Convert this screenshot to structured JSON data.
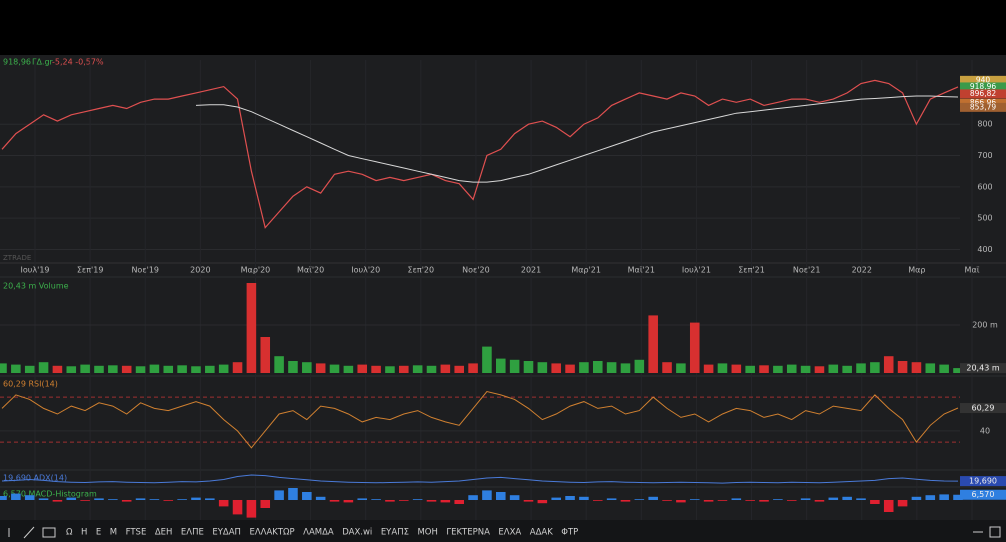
{
  "header": {
    "last": "918,96",
    "symbol": "ΓΔ.gr",
    "change": "-5,24 -0,57%"
  },
  "watermark": "ZTRADE",
  "chart_data": [
    {
      "type": "line",
      "pane": "price",
      "ylim": [
        360,
        1005
      ],
      "yticks": [
        400,
        500,
        600,
        700,
        800
      ],
      "x_axis_labels": [
        "Ιουλ'19",
        "Σεπ'19",
        "Νοε'19",
        "2020",
        "Μαρ'20",
        "Μαϊ'20",
        "Ιουλ'20",
        "Σεπ'20",
        "Νοε'20",
        "2021",
        "Μαρ'21",
        "Μαϊ'21",
        "Ιουλ'21",
        "Σεπ'21",
        "Νοε'21",
        "2022",
        "Μαρ",
        "Μαϊ"
      ],
      "price_tags": [
        {
          "value": 940,
          "label": "940",
          "color": "#c8a040"
        },
        {
          "value": 918.96,
          "label": "918,96",
          "color": "#3a9a4a"
        },
        {
          "value": 896.82,
          "label": "896,82",
          "color": "#c04030"
        },
        {
          "value": 866.96,
          "label": "866,96",
          "color": "#c07030"
        },
        {
          "value": 853.79,
          "label": "853,79",
          "color": "#a06030"
        }
      ],
      "series": [
        {
          "color": "#e05050",
          "values": [
            720,
            770,
            800,
            830,
            810,
            830,
            840,
            850,
            860,
            850,
            870,
            880,
            880,
            890,
            900,
            910,
            920,
            880,
            650,
            470,
            520,
            570,
            600,
            580,
            640,
            650,
            640,
            620,
            630,
            620,
            630,
            640,
            620,
            610,
            560,
            700,
            720,
            770,
            800,
            810,
            790,
            760,
            800,
            820,
            860,
            880,
            900,
            890,
            880,
            900,
            890,
            860,
            880,
            870,
            880,
            860,
            870,
            880,
            880,
            870,
            880,
            900,
            930,
            940,
            930,
            900,
            800,
            880,
            900,
            918.96
          ]
        },
        {
          "color": "#d8d8d8",
          "values": [
            null,
            null,
            null,
            null,
            null,
            null,
            null,
            null,
            null,
            null,
            null,
            null,
            null,
            null,
            860,
            862,
            862,
            855,
            840,
            820,
            800,
            780,
            760,
            740,
            720,
            700,
            690,
            680,
            670,
            660,
            650,
            640,
            630,
            620,
            615,
            615,
            620,
            630,
            640,
            655,
            670,
            685,
            700,
            715,
            730,
            745,
            760,
            775,
            785,
            795,
            805,
            815,
            825,
            835,
            840,
            845,
            850,
            855,
            860,
            865,
            870,
            875,
            880,
            882,
            885,
            888,
            890,
            890,
            888,
            887
          ]
        }
      ]
    },
    {
      "type": "bar",
      "pane": "volume",
      "label": "20,43 m Volume",
      "tag": "20,43 m",
      "ylim": [
        0,
        387.5
      ],
      "yticks": [
        {
          "value": 200,
          "label": "200 m"
        }
      ],
      "values": [
        40,
        35,
        30,
        45,
        30,
        28,
        35,
        30,
        32,
        30,
        28,
        35,
        30,
        32,
        28,
        30,
        35,
        45,
        375,
        150,
        70,
        50,
        45,
        40,
        35,
        30,
        35,
        30,
        28,
        30,
        32,
        30,
        35,
        30,
        40,
        110,
        60,
        55,
        50,
        45,
        40,
        35,
        45,
        50,
        45,
        40,
        55,
        240,
        45,
        40,
        210,
        35,
        40,
        35,
        30,
        32,
        30,
        35,
        30,
        28,
        35,
        30,
        40,
        45,
        70,
        50,
        45,
        40,
        35,
        20.43
      ]
    },
    {
      "type": "line",
      "pane": "rsi",
      "label": "60,29 RSI(14)",
      "tag": "60,29",
      "ylim": [
        7,
        87
      ],
      "yticks": [
        40
      ],
      "levels": [
        70,
        30
      ],
      "color": "#d08030",
      "values": [
        60,
        72,
        68,
        60,
        55,
        62,
        58,
        65,
        62,
        55,
        65,
        60,
        58,
        62,
        66,
        62,
        50,
        40,
        25,
        40,
        55,
        58,
        50,
        62,
        60,
        55,
        48,
        52,
        50,
        55,
        58,
        52,
        48,
        45,
        60,
        75,
        72,
        68,
        60,
        50,
        55,
        62,
        66,
        60,
        62,
        55,
        58,
        70,
        60,
        52,
        55,
        48,
        55,
        60,
        58,
        52,
        55,
        50,
        58,
        55,
        62,
        60,
        58,
        72,
        60,
        50,
        30,
        45,
        55,
        60.29
      ]
    },
    {
      "type": "line",
      "pane": "adx",
      "label": "19,690 ADX(14)",
      "tag": "19,690",
      "ylim": [
        0,
        50
      ],
      "color": "#4a7ad8",
      "values": [
        20,
        22,
        25,
        22,
        18,
        16,
        15,
        17,
        18,
        16,
        15,
        14,
        16,
        18,
        17,
        20,
        25,
        35,
        40,
        38,
        32,
        28,
        24,
        20,
        18,
        16,
        15,
        14,
        15,
        16,
        17,
        16,
        18,
        20,
        25,
        30,
        32,
        28,
        24,
        20,
        18,
        16,
        15,
        17,
        18,
        16,
        15,
        14,
        15,
        16,
        15,
        14,
        13,
        15,
        16,
        15,
        14,
        16,
        15,
        14,
        16,
        18,
        20,
        22,
        28,
        30,
        26,
        22,
        20,
        19.69
      ]
    },
    {
      "type": "bar",
      "pane": "macd",
      "label": "6,570 MACD-Histogram",
      "tag": "6,570",
      "ylim": [
        -25,
        15
      ],
      "values": [
        5,
        8,
        6,
        2,
        -2,
        3,
        -1,
        2,
        1,
        -2,
        2,
        1,
        -1,
        1,
        3,
        2,
        -8,
        -18,
        -22,
        -10,
        12,
        15,
        10,
        4,
        -2,
        -3,
        2,
        1,
        -2,
        -1,
        1,
        -2,
        -3,
        -5,
        6,
        12,
        10,
        6,
        -2,
        -4,
        3,
        5,
        4,
        -1,
        2,
        -2,
        1,
        4,
        -1,
        -3,
        1,
        -2,
        -1,
        2,
        -1,
        -2,
        1,
        -1,
        2,
        -2,
        3,
        4,
        2,
        -5,
        -15,
        -8,
        4,
        6,
        7,
        6.57
      ]
    }
  ],
  "toolbar": {
    "items": [
      "Ω",
      "H",
      "E",
      "M",
      "FTSE",
      "ΔΕΗ",
      "ΕΛΠΕ",
      "ΕΥΔΑΠ",
      "ΕΛΛΑΚΤΩΡ",
      "ΛΑΜΔΑ",
      "DAX.wi",
      "ΕΥΑΠΣ",
      "ΜΟΗ",
      "ΓΕΚΤΕΡΝΑ",
      "ΕΛΧΑ",
      "ΑΔΑΚ",
      "ΦΤΡ"
    ]
  }
}
